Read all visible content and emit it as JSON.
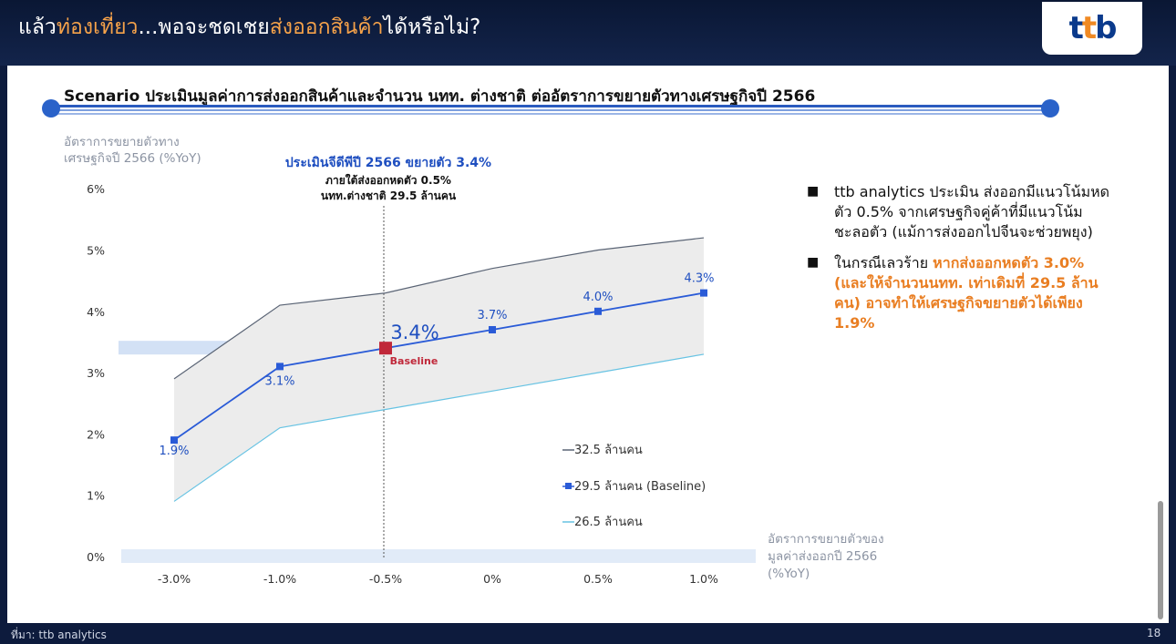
{
  "header": {
    "title_prefix": "แล้ว",
    "title_highlight_1": "ท่องเที่ยว",
    "title_middle": "...พอจะชดเชย",
    "title_highlight_2": "ส่งออกสินค้า",
    "title_suffix": "ได้หรือไม่?",
    "logo": "ttb"
  },
  "subtitle": "Scenario ประเมินมูลค่าการส่งออกสินค้าและจำนวน นทท. ต่างชาติ ต่ออัตราการขยายตัวทางเศรษฐกิจปี 2566",
  "bullets": [
    {
      "text": "ttb analytics ประเมิน ส่งออกมีแนวโน้มหดตัว 0.5% จากเศรษฐกิจคู่ค้าที่มีแนวโน้มชะลอตัว (แม้การส่งออกไปจีนจะช่วยพยุง)"
    },
    {
      "text_plain": "ในกรณีเลวร้าย ",
      "text_orange": "หากส่งออกหดตัว 3.0% (และให้จำนวนนทท. เท่าเดิมที่ 29.5 ล้านคน) อาจทำให้เศรษฐกิจขยายตัวได้เพียง 1.9%"
    }
  ],
  "footer": {
    "source": "ที่มา: ttb analytics",
    "page": "18"
  },
  "chart_data": {
    "type": "line",
    "categories": [
      "-3.0%",
      "-1.0%",
      "-0.5%",
      "0%",
      "0.5%",
      "1.0%"
    ],
    "ylabel": "อัตราการขยายตัวทางเศรษฐกิจปี 2566 (%YoY)",
    "xlabel": "อัตราการขยายตัวของมูลค่าส่งออกปี 2566 (%YoY)",
    "ylim": [
      0,
      6
    ],
    "yticks": [
      "0%",
      "1%",
      "2%",
      "3%",
      "4%",
      "5%",
      "6%"
    ],
    "series": [
      {
        "name": "32.5 ล้านคน",
        "values": [
          2.9,
          4.1,
          4.3,
          4.7,
          5.0,
          5.2
        ],
        "color": "#5a6475"
      },
      {
        "name": "29.5 ล้านคน (Baseline)",
        "values": [
          1.9,
          3.1,
          3.4,
          3.7,
          4.0,
          4.3
        ],
        "labels": [
          "1.9%",
          "3.1%",
          "3.4%",
          "3.7%",
          "4.0%",
          "4.3%"
        ],
        "color": "#2a5bd7"
      },
      {
        "name": "26.5 ล้านคน",
        "values": [
          0.9,
          2.1,
          2.4,
          2.7,
          3.0,
          3.3
        ],
        "color": "#67c3e3"
      }
    ],
    "annotation": {
      "title": "ประเมินจีดีพีปี 2566 ขยายตัว 3.4%",
      "line1": "ภายใต้ส่งออกหดตัว 0.5%",
      "line2": "นทท.ต่างชาติ 29.5 ล้านคน",
      "baseline_label": "Baseline"
    },
    "colors": {
      "band": "#ececec",
      "highlight": "#c8daf3",
      "baseline_marker": "#c0283a"
    }
  }
}
